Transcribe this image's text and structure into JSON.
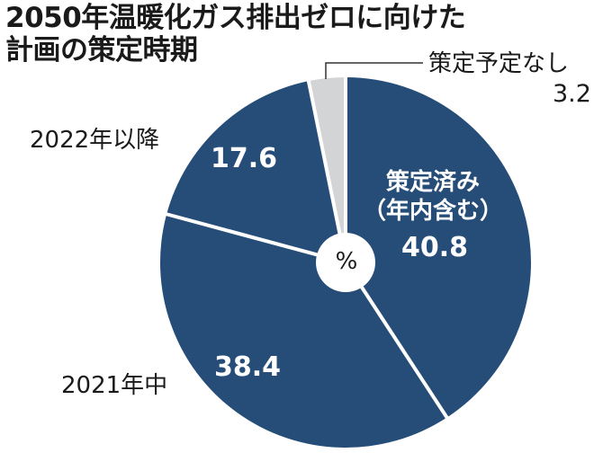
{
  "title": {
    "line1": "2050年温暖化ガス排出ゼロに向けた",
    "line2": "計画の策定時期"
  },
  "unit_label": "%",
  "colors": {
    "main": "#264d78",
    "none": "#d3d4d6",
    "separator": "#ffffff",
    "text": "#1a1a1a"
  },
  "labels": {
    "done_line1": "策定済み",
    "done_line2": "（年内含む）",
    "done_value": "40.8",
    "y2021": "2021年中",
    "y2021_value": "38.4",
    "y2022": "2022年以降",
    "y2022_value": "17.6",
    "none": "策定予定なし",
    "none_value": "3.2"
  },
  "chart_data": {
    "type": "pie",
    "title": "2050年温暖化ガス排出ゼロに向けた計画の策定時期",
    "unit": "%",
    "categories": [
      "策定済み（年内含む）",
      "2021年中",
      "2022年以降",
      "策定予定なし"
    ],
    "values": [
      40.8,
      38.4,
      17.6,
      3.2
    ],
    "colors": [
      "#264d78",
      "#264d78",
      "#264d78",
      "#d3d4d6"
    ],
    "start_angle": "12 o'clock, clockwise",
    "donut_hole": true
  }
}
